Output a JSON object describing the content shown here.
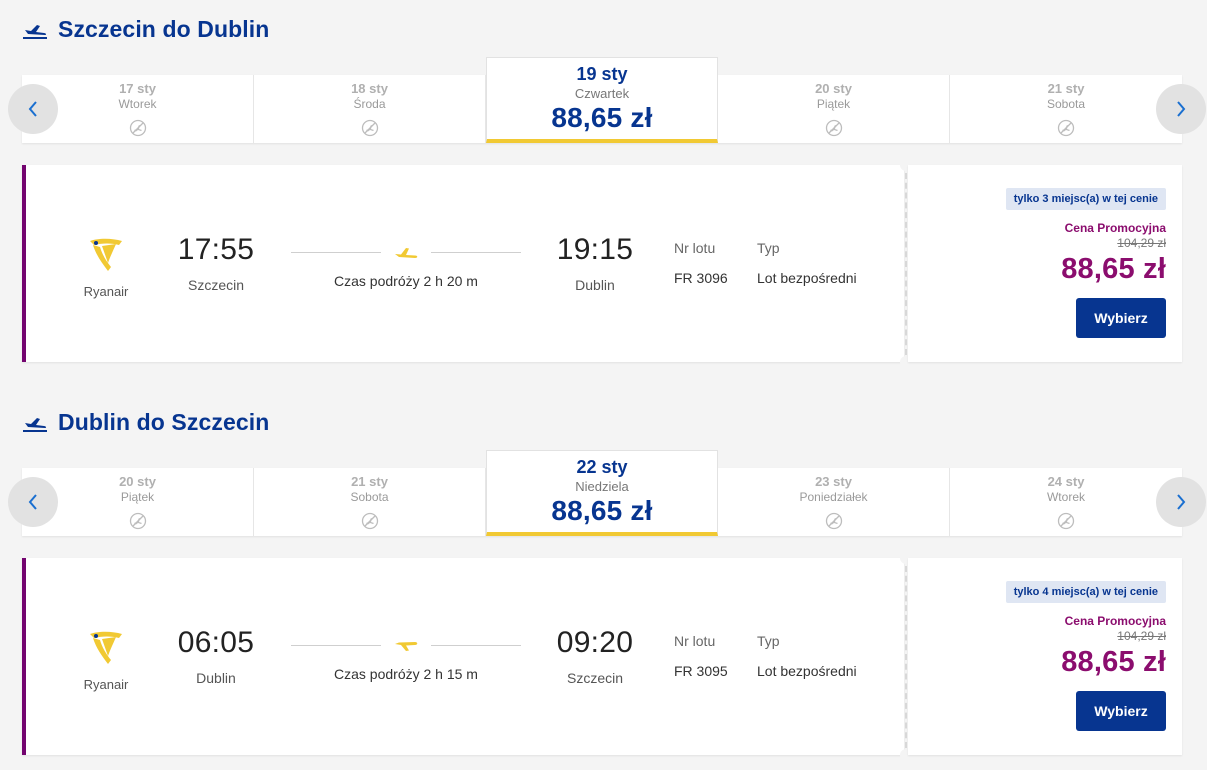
{
  "outbound": {
    "title": "Szczecin do Dublin",
    "dates": [
      {
        "date": "17 sty",
        "weekday": "Wtorek"
      },
      {
        "date": "18 sty",
        "weekday": "Środa"
      },
      {
        "date": "19 sty",
        "weekday": "Czwartek",
        "price": "88,65 zł",
        "selected": true
      },
      {
        "date": "20 sty",
        "weekday": "Piątek"
      },
      {
        "date": "21 sty",
        "weekday": "Sobota"
      }
    ],
    "flight": {
      "airline": "Ryanair",
      "dep_time": "17:55",
      "dep_city": "Szczecin",
      "duration": "Czas podróży 2 h 20 m",
      "arr_time": "19:15",
      "arr_city": "Dublin",
      "flight_no_label": "Nr lotu",
      "flight_no": "FR 3096",
      "type_label": "Typ",
      "type": "Lot bezpośredni",
      "seats_left": "tylko 3 miejsc(a) w tej cenie",
      "promo_label": "Cena Promocyjna",
      "old_price": "104,29 zł",
      "price": "88,65 zł",
      "select_label": "Wybierz"
    }
  },
  "inbound": {
    "title": "Dublin do Szczecin",
    "dates": [
      {
        "date": "20 sty",
        "weekday": "Piątek"
      },
      {
        "date": "21 sty",
        "weekday": "Sobota"
      },
      {
        "date": "22 sty",
        "weekday": "Niedziela",
        "price": "88,65 zł",
        "selected": true
      },
      {
        "date": "23 sty",
        "weekday": "Poniedziałek"
      },
      {
        "date": "24 sty",
        "weekday": "Wtorek"
      }
    ],
    "flight": {
      "airline": "Ryanair",
      "dep_time": "06:05",
      "dep_city": "Dublin",
      "duration": "Czas podróży 2 h 15 m",
      "arr_time": "09:20",
      "arr_city": "Szczecin",
      "flight_no_label": "Nr lotu",
      "flight_no": "FR 3095",
      "type_label": "Typ",
      "type": "Lot bezpośredni",
      "seats_left": "tylko 4 miejsc(a) w tej cenie",
      "promo_label": "Cena Promocyjna",
      "old_price": "104,29 zł",
      "price": "88,65 zł",
      "select_label": "Wybierz"
    }
  },
  "colors": {
    "brand_blue": "#073590",
    "promo_purple": "#8b0d6e",
    "accent_yellow": "#f1c933",
    "card_border": "#73046f"
  },
  "icons": {
    "section": "departure-plane-icon",
    "no_flight": "no-flight-icon",
    "prev": "chevron-left-icon",
    "next": "chevron-right-icon",
    "airline_logo": "ryanair-harp-logo",
    "route_plane": "plane-icon"
  }
}
